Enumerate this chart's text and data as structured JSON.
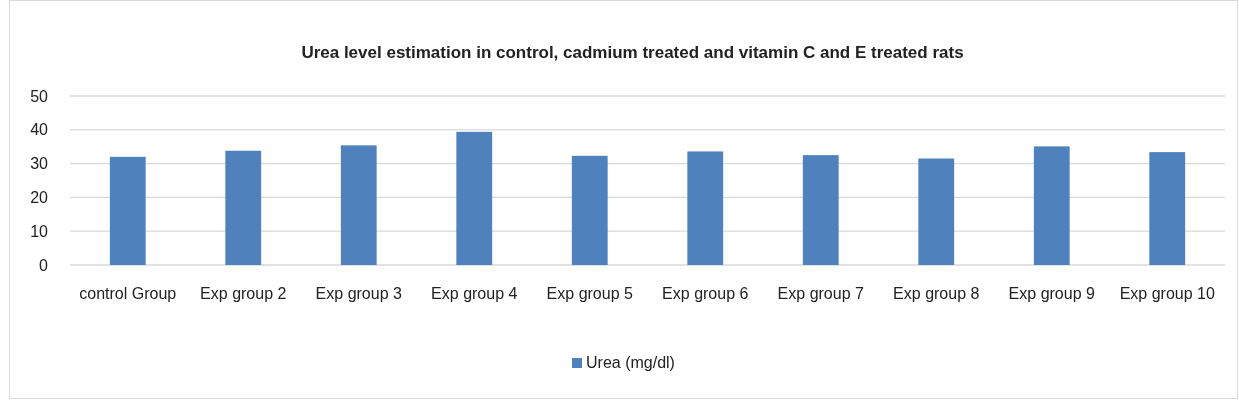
{
  "chart_data": {
    "type": "bar",
    "title": "Urea level estimation in control, cadmium treated and vitamin C and E treated rats",
    "categories": [
      "control Group",
      "Exp group 2",
      "Exp group 3",
      "Exp group 4",
      "Exp group 5",
      "Exp group 6",
      "Exp group 7",
      "Exp group 8",
      "Exp group 9",
      "Exp group 10"
    ],
    "series": [
      {
        "name": "Urea (mg/dl)",
        "color": "#4f81bd",
        "values": [
          32.0,
          33.8,
          35.4,
          39.4,
          32.3,
          33.6,
          32.5,
          31.5,
          35.1,
          33.4
        ]
      }
    ],
    "ylim": [
      0,
      50
    ],
    "yticks": [
      0,
      10,
      20,
      30,
      40,
      50
    ],
    "grid": "y",
    "legend": "bottom"
  }
}
